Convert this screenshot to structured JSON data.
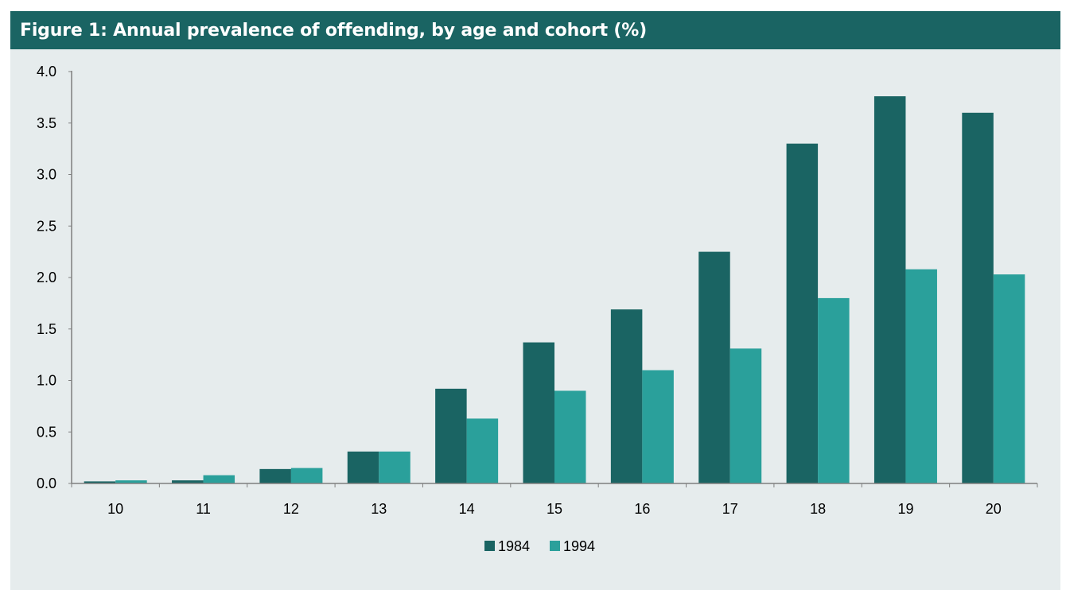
{
  "title": "Figure 1: Annual prevalence of offending, by age and cohort (%)",
  "colors": {
    "header_bg": "#1a6463",
    "panel_bg": "#e6eced",
    "axis": "#7f7f7f",
    "series_1984": "#1a6463",
    "series_1994": "#2aa09b"
  },
  "chart_data": {
    "type": "bar",
    "title": "Figure 1: Annual prevalence of offending, by age and cohort (%)",
    "xlabel": "",
    "ylabel": "",
    "ylim": [
      0,
      4.0
    ],
    "y_ticks": [
      "0.0",
      "0.5",
      "1.0",
      "1.5",
      "2.0",
      "2.5",
      "3.0",
      "3.5",
      "4.0"
    ],
    "categories": [
      "10",
      "11",
      "12",
      "13",
      "14",
      "15",
      "16",
      "17",
      "18",
      "19",
      "20"
    ],
    "series": [
      {
        "name": "1984",
        "color": "#1a6463",
        "values": [
          0.02,
          0.03,
          0.14,
          0.31,
          0.92,
          1.37,
          1.69,
          2.25,
          3.3,
          3.76,
          3.6
        ]
      },
      {
        "name": "1994",
        "color": "#2aa09b",
        "values": [
          0.03,
          0.08,
          0.15,
          0.31,
          0.63,
          0.9,
          1.1,
          1.31,
          1.8,
          2.08,
          2.03
        ]
      }
    ],
    "grid": false,
    "legend": "bottom-center"
  }
}
